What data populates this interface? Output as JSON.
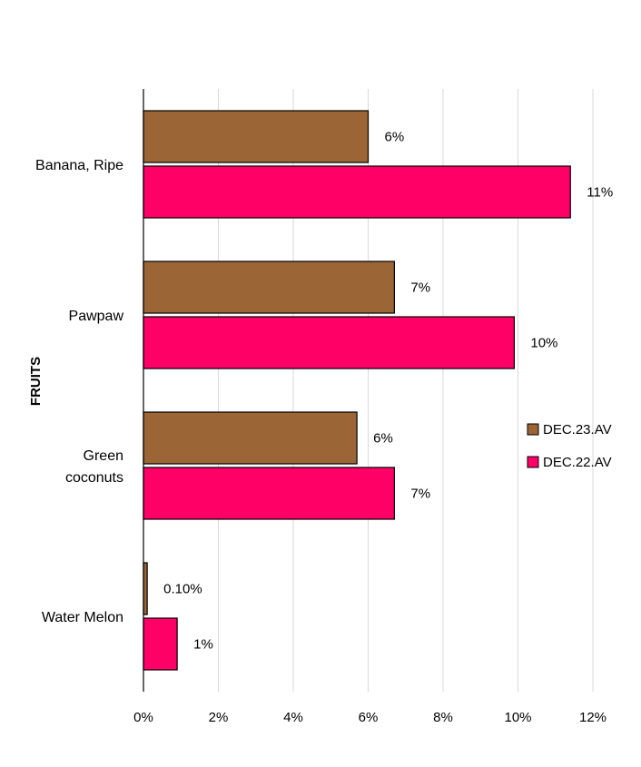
{
  "chart_data": {
    "type": "bar",
    "orientation": "horizontal",
    "categories": [
      "Banana, Ripe",
      "Pawpaw",
      "Green coconuts",
      "Water Melon"
    ],
    "category_display_lines": [
      [
        "Banana, Ripe"
      ],
      [
        "Pawpaw"
      ],
      [
        "Green",
        "coconuts"
      ],
      [
        "Water Melon"
      ]
    ],
    "series": [
      {
        "name": "DEC.23.AV",
        "color": "#9B6536",
        "values": [
          6.0,
          6.7,
          5.7,
          0.1
        ],
        "data_labels": [
          "6%",
          "7%",
          "6%",
          "0.10%"
        ]
      },
      {
        "name": "DEC.22.AV",
        "color": "#FF0066",
        "values": [
          11.4,
          9.9,
          6.7,
          0.9
        ],
        "data_labels": [
          "11%",
          "10%",
          "7%",
          "1%"
        ]
      }
    ],
    "title": "",
    "xlabel": "",
    "ylabel": "FRUITS",
    "xlim": [
      0,
      12
    ],
    "x_ticks": [
      0,
      2,
      4,
      6,
      8,
      10,
      12
    ],
    "x_tick_labels": [
      "0%",
      "2%",
      "4%",
      "6%",
      "8%",
      "10%",
      "12%"
    ],
    "grid": "vertical",
    "legend_position": "right"
  }
}
